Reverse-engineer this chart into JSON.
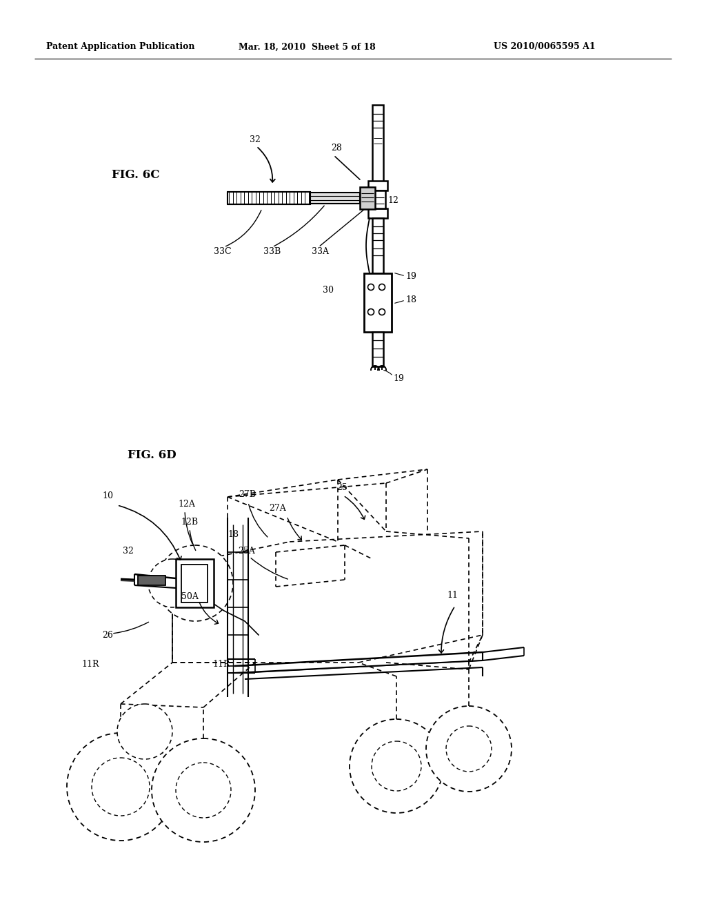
{
  "header_left": "Patent Application Publication",
  "header_mid": "Mar. 18, 2010  Sheet 5 of 18",
  "header_right": "US 2010/0065595 A1",
  "fig6c_label": "FIG. 6C",
  "fig6d_label": "FIG. 6D",
  "bg_color": "#ffffff"
}
